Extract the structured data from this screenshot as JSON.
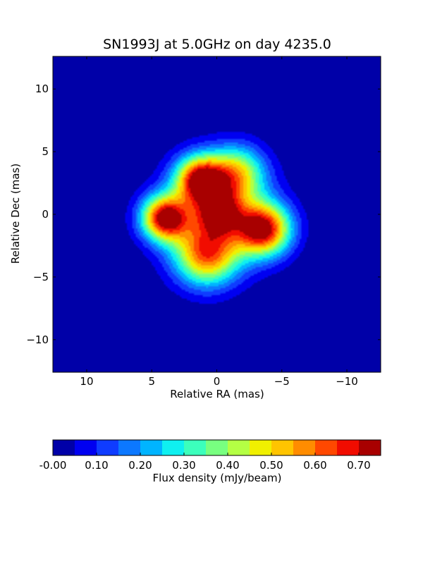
{
  "chart_data": {
    "type": "heatmap",
    "title": "SN1993J at 5.0GHz on day 4235.0",
    "xlabel": "Relative RA (mas)",
    "ylabel": "Relative Dec (mas)",
    "xlim": [
      12.6,
      -12.6
    ],
    "ylim": [
      -12.6,
      12.6
    ],
    "x_ticks": [
      10,
      5,
      0,
      -5,
      -10
    ],
    "x_tick_labels": [
      "10",
      "5",
      "0",
      "−5",
      "−10"
    ],
    "y_ticks": [
      10,
      5,
      0,
      -5,
      -10
    ],
    "y_tick_labels": [
      "10",
      "5",
      "0",
      "−5",
      "−10"
    ],
    "colorbar": {
      "label": "Flux density (mJy/beam)",
      "levels": [
        0.0,
        0.05,
        0.1,
        0.15,
        0.2,
        0.25,
        0.3,
        0.35,
        0.4,
        0.45,
        0.5,
        0.55,
        0.6,
        0.65,
        0.7,
        0.75
      ],
      "colors": [
        "#0000a8",
        "#0000f1",
        "#0f3cff",
        "#0c78ff",
        "#00b4ff",
        "#0ff0f0",
        "#3cffbc",
        "#78ff80",
        "#b4ff44",
        "#f0f000",
        "#ffc400",
        "#ff8c00",
        "#ff4800",
        "#f10c00",
        "#a80000"
      ],
      "tick_values": [
        0.0,
        0.1,
        0.2,
        0.3,
        0.4,
        0.5,
        0.6,
        0.7
      ],
      "tick_labels": [
        "-0.00",
        "0.10",
        "0.20",
        "0.30",
        "0.40",
        "0.50",
        "0.60",
        "0.70"
      ]
    },
    "components": [
      {
        "ra": 0.0,
        "dec": 0.0,
        "flux": 0.34,
        "sigma": 2.7
      },
      {
        "ra": 4.0,
        "dec": -0.3,
        "flux": 0.68,
        "sigma": 1.25
      },
      {
        "ra": 1.3,
        "dec": 2.8,
        "flux": 0.62,
        "sigma": 1.3
      },
      {
        "ra": -3.6,
        "dec": -1.2,
        "flux": 0.66,
        "sigma": 1.45
      },
      {
        "ra": -1.5,
        "dec": 3.3,
        "flux": 0.4,
        "sigma": 1.5
      },
      {
        "ra": 0.8,
        "dec": -3.3,
        "flux": 0.5,
        "sigma": 1.7
      },
      {
        "ra": -0.2,
        "dec": 0.2,
        "flux": 0.4,
        "sigma": 1.2
      }
    ]
  }
}
